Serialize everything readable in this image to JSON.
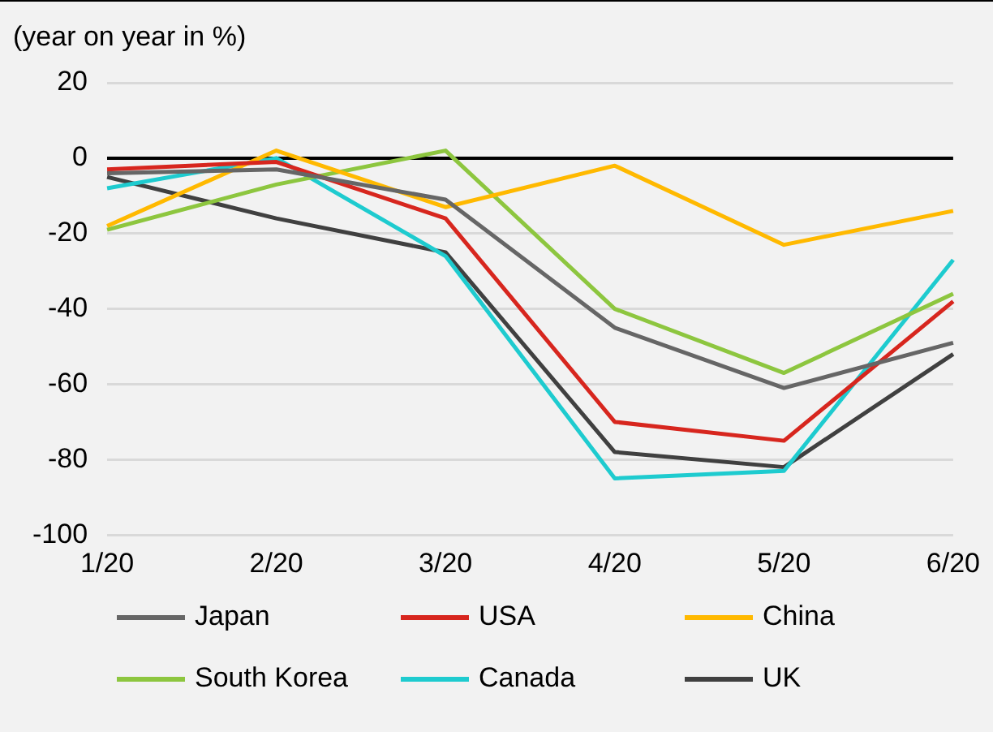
{
  "chart_data": {
    "type": "line",
    "title": "(year on year in %)",
    "categories": [
      "1/20",
      "2/20",
      "3/20",
      "4/20",
      "5/20",
      "6/20"
    ],
    "series": [
      {
        "name": "Japan",
        "color": "#666666",
        "values": [
          -4,
          -3,
          -11,
          -45,
          -61,
          -49
        ]
      },
      {
        "name": "USA",
        "color": "#d7261e",
        "values": [
          -3,
          -1,
          -16,
          -70,
          -75,
          -38
        ]
      },
      {
        "name": "China",
        "color": "#ffb900",
        "values": [
          -18,
          2,
          -13,
          -2,
          -23,
          -14
        ]
      },
      {
        "name": "South Korea",
        "color": "#8dc63f",
        "values": [
          -19,
          -7,
          2,
          -40,
          -57,
          -36
        ]
      },
      {
        "name": "Canada",
        "color": "#1ecbcf",
        "values": [
          -8,
          0,
          -26,
          -85,
          -83,
          -27
        ]
      },
      {
        "name": "UK",
        "color": "#404040",
        "values": [
          -5,
          -16,
          -25,
          -78,
          -82,
          -52
        ]
      }
    ],
    "ylim": [
      -100,
      20
    ],
    "yticks": [
      -100,
      -80,
      -60,
      -40,
      -20,
      0,
      20
    ],
    "grid": "y",
    "legend": "bottom",
    "marker": "none",
    "line_style": "solid"
  }
}
